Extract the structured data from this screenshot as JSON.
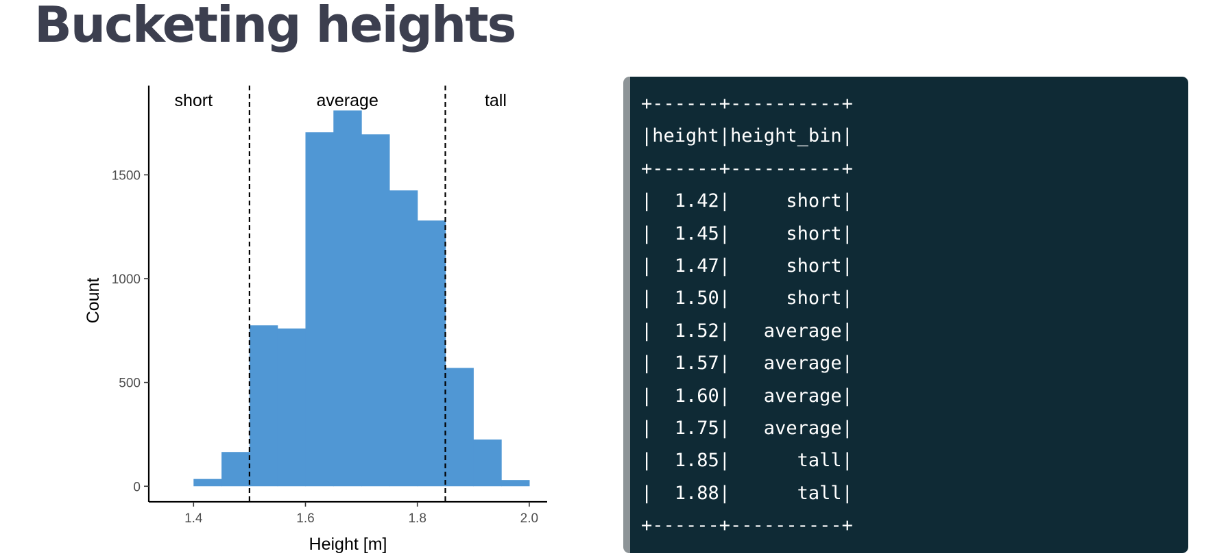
{
  "slide": {
    "title": "Bucketing heights"
  },
  "chart_data": {
    "type": "bar",
    "subtype": "histogram",
    "xlabel": "Height [m]",
    "ylabel": "Count",
    "xlim": [
      1.32,
      2.032
    ],
    "ylim": [
      -75,
      1930
    ],
    "x_ticks": [
      {
        "value": 1.4,
        "label": "1.4"
      },
      {
        "value": 1.6,
        "label": "1.6"
      },
      {
        "value": 1.8,
        "label": "1.8"
      },
      {
        "value": 2.0,
        "label": "2.0"
      }
    ],
    "y_ticks": [
      {
        "value": 0,
        "label": "0"
      },
      {
        "value": 500,
        "label": "500"
      },
      {
        "value": 1000,
        "label": "1000"
      },
      {
        "value": 1500,
        "label": "1500"
      }
    ],
    "bins": [
      {
        "x0": 1.4,
        "x1": 1.45,
        "count": 35
      },
      {
        "x0": 1.45,
        "x1": 1.5,
        "count": 165
      },
      {
        "x0": 1.5,
        "x1": 1.55,
        "count": 775
      },
      {
        "x0": 1.55,
        "x1": 1.6,
        "count": 760
      },
      {
        "x0": 1.6,
        "x1": 1.65,
        "count": 1705
      },
      {
        "x0": 1.65,
        "x1": 1.7,
        "count": 1810
      },
      {
        "x0": 1.7,
        "x1": 1.75,
        "count": 1695
      },
      {
        "x0": 1.75,
        "x1": 1.8,
        "count": 1425
      },
      {
        "x0": 1.8,
        "x1": 1.85,
        "count": 1280
      },
      {
        "x0": 1.85,
        "x1": 1.9,
        "count": 570
      },
      {
        "x0": 1.9,
        "x1": 1.95,
        "count": 225
      },
      {
        "x0": 1.95,
        "x1": 2.0,
        "count": 30
      }
    ],
    "cutoffs": [
      1.5,
      1.85
    ],
    "region_labels": [
      {
        "text": "short",
        "x": 1.4
      },
      {
        "text": "average",
        "x": 1.675
      },
      {
        "text": "tall",
        "x": 1.94
      }
    ],
    "bar_color": "#5097d4",
    "grid": false
  },
  "table": {
    "lines": [
      "+------+----------+",
      "|height|height_bin|",
      "+------+----------+",
      "|  1.42|     short|",
      "|  1.45|     short|",
      "|  1.47|     short|",
      "|  1.50|     short|",
      "|  1.52|   average|",
      "|  1.57|   average|",
      "|  1.60|   average|",
      "|  1.75|   average|",
      "|  1.85|      tall|",
      "|  1.88|      tall|",
      "+------+----------+"
    ]
  },
  "colors": {
    "title": "#3c3f4f",
    "panel_background": "#0f2a35",
    "panel_border": "#8d9497",
    "code_text": "#ffffff"
  }
}
